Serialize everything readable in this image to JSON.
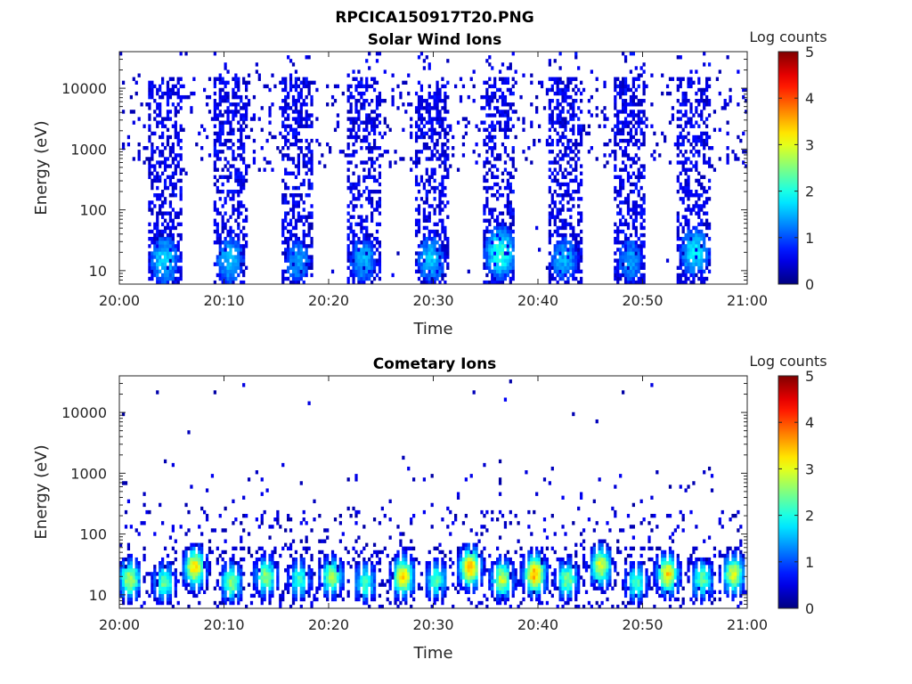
{
  "figure": {
    "title": "RPCICA150917T20.PNG"
  },
  "colorbar": {
    "label": "Log counts",
    "ticks": [
      "0",
      "1",
      "2",
      "3",
      "4",
      "5"
    ],
    "range": [
      0,
      5
    ],
    "colormap": "jet"
  },
  "chart_data": [
    {
      "type": "heatmap",
      "title": "Solar Wind Ions",
      "xlabel": "Time",
      "ylabel": "Energy (eV)",
      "x_ticks": [
        "20:00",
        "20:10",
        "20:20",
        "20:30",
        "20:40",
        "20:50",
        "21:00"
      ],
      "xlim_minutes": [
        0,
        60
      ],
      "y_scale": "log",
      "y_ticks": [
        "10",
        "100",
        "1000",
        "10000"
      ],
      "ylim": [
        6,
        40000
      ],
      "z_label": "Log counts",
      "zlim": [
        0,
        5
      ],
      "bursts": [
        {
          "start_min": 2.7,
          "end_min": 5.9,
          "peak_time_min": 4.3,
          "peak_energy_ev": 15,
          "peak_log_counts": 1.7
        },
        {
          "start_min": 9.0,
          "end_min": 12.3,
          "peak_time_min": 10.6,
          "peak_energy_ev": 15,
          "peak_log_counts": 1.6
        },
        {
          "start_min": 15.5,
          "end_min": 18.6,
          "peak_time_min": 17.0,
          "peak_energy_ev": 15,
          "peak_log_counts": 1.4
        },
        {
          "start_min": 21.7,
          "end_min": 24.9,
          "peak_time_min": 23.3,
          "peak_energy_ev": 15,
          "peak_log_counts": 1.5
        },
        {
          "start_min": 28.2,
          "end_min": 31.4,
          "peak_time_min": 29.8,
          "peak_energy_ev": 15,
          "peak_log_counts": 1.6
        },
        {
          "start_min": 34.8,
          "end_min": 37.8,
          "peak_time_min": 36.4,
          "peak_energy_ev": 20,
          "peak_log_counts": 2.1
        },
        {
          "start_min": 40.9,
          "end_min": 44.2,
          "peak_time_min": 42.5,
          "peak_energy_ev": 15,
          "peak_log_counts": 1.5
        },
        {
          "start_min": 47.2,
          "end_min": 50.3,
          "peak_time_min": 48.8,
          "peak_energy_ev": 15,
          "peak_log_counts": 1.4
        },
        {
          "start_min": 53.3,
          "end_min": 56.6,
          "peak_time_min": 55.0,
          "peak_energy_ev": 20,
          "peak_log_counts": 1.8
        }
      ],
      "background_log_counts": 0.3
    },
    {
      "type": "heatmap",
      "title": "Cometary Ions",
      "xlabel": "Time",
      "ylabel": "Energy (eV)",
      "x_ticks": [
        "20:00",
        "20:10",
        "20:20",
        "20:30",
        "20:40",
        "20:50",
        "21:00"
      ],
      "xlim_minutes": [
        0,
        60
      ],
      "y_scale": "log",
      "y_ticks": [
        "10",
        "100",
        "1000",
        "10000"
      ],
      "ylim": [
        6,
        40000
      ],
      "z_label": "Log counts",
      "zlim": [
        0,
        5
      ],
      "bursts": [
        {
          "center_min": 1.0,
          "peak_energy_ev": 18,
          "peak_log_counts": 2.8
        },
        {
          "center_min": 4.3,
          "peak_energy_ev": 16,
          "peak_log_counts": 2.4
        },
        {
          "center_min": 7.2,
          "peak_energy_ev": 28,
          "peak_log_counts": 3.3
        },
        {
          "center_min": 10.7,
          "peak_energy_ev": 16,
          "peak_log_counts": 2.5
        },
        {
          "center_min": 14.0,
          "peak_energy_ev": 20,
          "peak_log_counts": 2.6
        },
        {
          "center_min": 17.2,
          "peak_energy_ev": 18,
          "peak_log_counts": 2.2
        },
        {
          "center_min": 20.3,
          "peak_energy_ev": 20,
          "peak_log_counts": 2.7
        },
        {
          "center_min": 23.5,
          "peak_energy_ev": 16,
          "peak_log_counts": 2.2
        },
        {
          "center_min": 27.1,
          "peak_energy_ev": 20,
          "peak_log_counts": 3.4
        },
        {
          "center_min": 30.3,
          "peak_energy_ev": 18,
          "peak_log_counts": 2.3
        },
        {
          "center_min": 33.5,
          "peak_energy_ev": 28,
          "peak_log_counts": 3.5
        },
        {
          "center_min": 36.6,
          "peak_energy_ev": 18,
          "peak_log_counts": 2.9
        },
        {
          "center_min": 39.7,
          "peak_energy_ev": 22,
          "peak_log_counts": 3.6
        },
        {
          "center_min": 42.8,
          "peak_energy_ev": 18,
          "peak_log_counts": 2.5
        },
        {
          "center_min": 46.0,
          "peak_energy_ev": 30,
          "peak_log_counts": 3.0
        },
        {
          "center_min": 49.4,
          "peak_energy_ev": 16,
          "peak_log_counts": 2.2
        },
        {
          "center_min": 52.4,
          "peak_energy_ev": 22,
          "peak_log_counts": 3.3
        },
        {
          "center_min": 55.7,
          "peak_energy_ev": 18,
          "peak_log_counts": 2.4
        },
        {
          "center_min": 58.7,
          "peak_energy_ev": 22,
          "peak_log_counts": 3.0
        }
      ],
      "background_log_counts": 0.2
    }
  ]
}
